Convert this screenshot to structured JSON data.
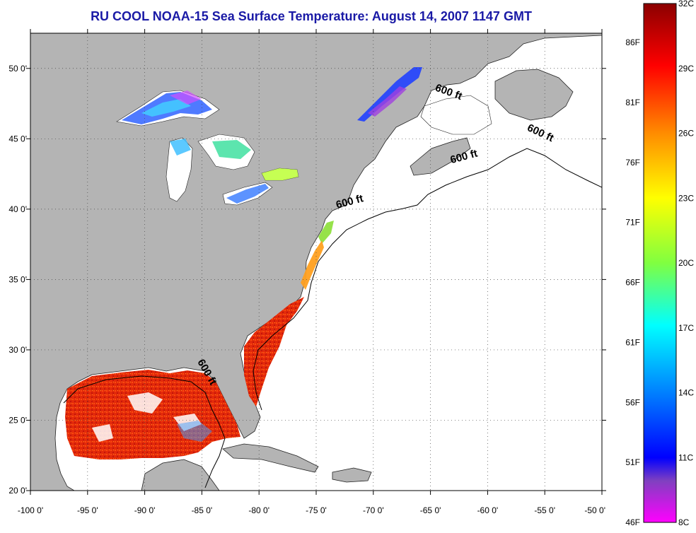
{
  "title": "RU COOL  NOAA-15  Sea Surface Temperature:  August 14, 2007 1147 GMT",
  "colors": {
    "title": "#1a1aa6",
    "land": "#b4b4b4",
    "ocean": "#ffffff",
    "grid": "#444444"
  },
  "map": {
    "lon_range": [
      -100,
      -50
    ],
    "lat_range": [
      20,
      52.5
    ],
    "x_ticks": [
      {
        "value": -100,
        "label": "-100 0'"
      },
      {
        "value": -95,
        "label": "-95 0'"
      },
      {
        "value": -90,
        "label": "-90 0'"
      },
      {
        "value": -85,
        "label": "-85 0'"
      },
      {
        "value": -80,
        "label": "-80 0'"
      },
      {
        "value": -75,
        "label": "-75 0'"
      },
      {
        "value": -70,
        "label": "-70 0'"
      },
      {
        "value": -65,
        "label": "-65 0'"
      },
      {
        "value": -60,
        "label": "-60 0'"
      },
      {
        "value": -55,
        "label": "-55 0'"
      },
      {
        "value": -50,
        "label": "-50 0'"
      }
    ],
    "y_ticks": [
      {
        "value": 20,
        "label": "20 0'"
      },
      {
        "value": 25,
        "label": "25 0'"
      },
      {
        "value": 30,
        "label": "30 0'"
      },
      {
        "value": 35,
        "label": "35 0'"
      },
      {
        "value": 40,
        "label": "40 0'"
      },
      {
        "value": 45,
        "label": "45 0'"
      },
      {
        "value": 50,
        "label": "50 0'"
      }
    ],
    "contour_labels": [
      {
        "text": "600 ft",
        "lon": -63.5,
        "lat": 48.1,
        "rotate": 20
      },
      {
        "text": "600 ft",
        "lon": -55.5,
        "lat": 45.2,
        "rotate": 25
      },
      {
        "text": "600 ft",
        "lon": -62.0,
        "lat": 43.5,
        "rotate": -15
      },
      {
        "text": "600 ft",
        "lon": -72.0,
        "lat": 40.3,
        "rotate": -15
      },
      {
        "text": "600 ft",
        "lon": -84.8,
        "lat": 28.3,
        "rotate": 60
      }
    ]
  },
  "colorbar": {
    "celsius_labels": [
      "32C",
      "29C",
      "26C",
      "23C",
      "20C",
      "17C",
      "14C",
      "11C",
      "8C"
    ],
    "fahrenheit_labels": [
      "86F",
      "81F",
      "76F",
      "71F",
      "66F",
      "61F",
      "56F",
      "51F",
      "46F"
    ],
    "stops": [
      "#8b0000",
      "#ff0000",
      "#ff8c00",
      "#ffff00",
      "#80ff40",
      "#00ffff",
      "#0080ff",
      "#0000ff",
      "#8040c0",
      "#ff00ff"
    ]
  }
}
